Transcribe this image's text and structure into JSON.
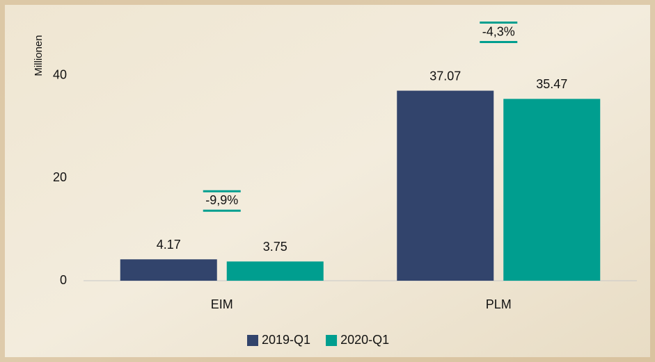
{
  "chart_data": {
    "type": "bar",
    "y_label": "Millionen",
    "categories": [
      "EIM",
      "PLM"
    ],
    "series": [
      {
        "name": "2019-Q1",
        "color": "#32446c",
        "values": [
          4.17,
          37.07
        ]
      },
      {
        "name": "2020-Q1",
        "color": "#009e8f",
        "values": [
          3.75,
          35.47
        ]
      }
    ],
    "annotations": [
      "-9,9%",
      "-4,3%"
    ],
    "ylim": [
      0,
      53
    ],
    "yticks": [
      0,
      20,
      40
    ],
    "grid": false,
    "legend": "bottom"
  }
}
